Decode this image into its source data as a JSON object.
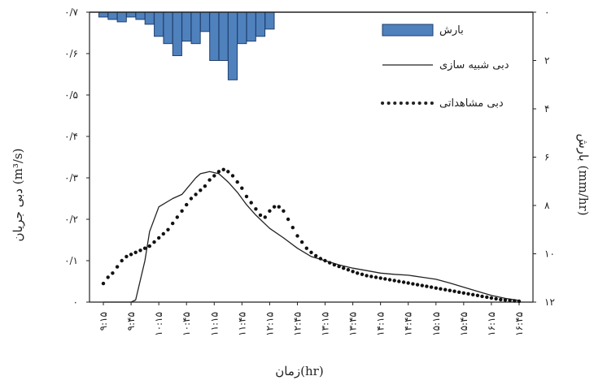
{
  "chart_data": {
    "type": "bar+line",
    "title": "",
    "x_labels": [
      "۹:۱۵",
      "۹:۴۵",
      "۱۰:۱۵",
      "۱۰:۴۵",
      "۱۱:۱۵",
      "۱۱:۴۵",
      "۱۲:۱۵",
      "۱۲:۴۵",
      "۱۳:۱۵",
      "۱۳:۴۵",
      "۱۴:۱۵",
      "۱۴:۴۵",
      "۱۵:۱۵",
      "۱۵:۴۵",
      "۱۶:۱۵",
      "۱۶:۴۵"
    ],
    "xlabel": "زمان(hr)",
    "ylabel_left": "دبی جریان (m³/s)",
    "ylabel_right": "بارش (mm/hr)",
    "y_left_ticks": [
      "۰",
      "۰/۱",
      "۰/۲",
      "۰/۳",
      "۰/۴",
      "۰/۵",
      "۰/۶",
      "۰/۷"
    ],
    "y_left_lim": [
      0,
      0.7
    ],
    "y_right_ticks": [
      "۰",
      "۲",
      "۴",
      "۶",
      "۸",
      "۱۰",
      "۱۲"
    ],
    "y_right_lim": [
      0,
      12
    ],
    "y_right_inverted": true,
    "legend": {
      "position": "top-right",
      "rain_label": "بارش",
      "sim_label": "دبی شبیه سازی",
      "obs_label": "دبی مشاهداتی"
    },
    "rainfall": {
      "name": "بارش",
      "color": "#4f81bd",
      "x": [
        9.25,
        9.417,
        9.583,
        9.75,
        9.917,
        10.083,
        10.25,
        10.417,
        10.583,
        10.75,
        10.917,
        11.083,
        11.25,
        11.417,
        11.583,
        11.75,
        11.917,
        12.083,
        12.25
      ],
      "values": [
        0.2,
        0.3,
        0.4,
        0.2,
        0.3,
        0.5,
        1.0,
        1.3,
        1.8,
        1.2,
        1.3,
        0.8,
        2.0,
        2.0,
        2.8,
        1.3,
        1.2,
        1.0,
        0.7
      ]
    },
    "simulated": {
      "name": "دبی شبیه سازی",
      "x": [
        9.25,
        9.5,
        9.75,
        9.833,
        10.0,
        10.083,
        10.25,
        10.5,
        10.667,
        10.917,
        11.0,
        11.167,
        11.333,
        11.417,
        11.5,
        11.667,
        11.833,
        12.0,
        12.25,
        12.5,
        12.75,
        13.0,
        13.25,
        13.5,
        13.75,
        14.0,
        14.25,
        14.5,
        14.75,
        15.0,
        15.25,
        15.5,
        15.75,
        16.0,
        16.25,
        16.5,
        16.75
      ],
      "values": [
        0,
        0,
        0,
        0.005,
        0.1,
        0.17,
        0.23,
        0.25,
        0.26,
        0.3,
        0.31,
        0.315,
        0.31,
        0.3,
        0.29,
        0.265,
        0.235,
        0.21,
        0.178,
        0.155,
        0.13,
        0.11,
        0.1,
        0.09,
        0.082,
        0.076,
        0.07,
        0.067,
        0.065,
        0.06,
        0.055,
        0.046,
        0.036,
        0.026,
        0.016,
        0.009,
        0.004
      ]
    },
    "observed": {
      "name": "دبی مشاهداتی",
      "x": [
        9.25,
        9.333,
        9.417,
        9.5,
        9.583,
        9.667,
        9.75,
        9.833,
        9.917,
        10.0,
        10.083,
        10.167,
        10.25,
        10.333,
        10.417,
        10.5,
        10.583,
        10.667,
        10.75,
        10.833,
        10.917,
        11.0,
        11.083,
        11.167,
        11.25,
        11.333,
        11.417,
        11.5,
        11.583,
        11.667,
        11.75,
        11.833,
        11.917,
        12.0,
        12.083,
        12.167,
        12.25,
        12.333,
        12.417,
        12.5,
        12.583,
        12.667,
        12.75,
        12.833,
        12.917,
        13.0,
        13.083,
        13.167,
        13.25,
        13.333,
        13.417,
        13.5,
        13.583,
        13.667,
        13.75,
        13.833,
        13.917,
        14.0,
        14.083,
        14.167,
        14.25,
        14.333,
        14.417,
        14.5,
        14.583,
        14.667,
        14.75,
        14.833,
        14.917,
        15.0,
        15.083,
        15.167,
        15.25,
        15.333,
        15.417,
        15.5,
        15.583,
        15.667,
        15.75,
        15.833,
        15.917,
        16.0,
        16.083,
        16.167,
        16.25,
        16.333,
        16.417,
        16.5,
        16.583,
        16.667,
        16.75
      ],
      "values": [
        0.045,
        0.06,
        0.07,
        0.085,
        0.1,
        0.11,
        0.115,
        0.12,
        0.125,
        0.13,
        0.135,
        0.145,
        0.155,
        0.165,
        0.175,
        0.19,
        0.205,
        0.22,
        0.235,
        0.25,
        0.26,
        0.27,
        0.28,
        0.295,
        0.305,
        0.315,
        0.32,
        0.315,
        0.305,
        0.29,
        0.275,
        0.255,
        0.24,
        0.225,
        0.21,
        0.205,
        0.22,
        0.23,
        0.23,
        0.22,
        0.2,
        0.18,
        0.16,
        0.145,
        0.13,
        0.12,
        0.112,
        0.105,
        0.1,
        0.095,
        0.09,
        0.086,
        0.082,
        0.078,
        0.074,
        0.07,
        0.067,
        0.064,
        0.062,
        0.06,
        0.058,
        0.056,
        0.054,
        0.052,
        0.05,
        0.048,
        0.046,
        0.044,
        0.042,
        0.04,
        0.038,
        0.036,
        0.034,
        0.032,
        0.03,
        0.028,
        0.026,
        0.024,
        0.022,
        0.02,
        0.018,
        0.016,
        0.014,
        0.012,
        0.01,
        0.008,
        0.006,
        0.005,
        0.004,
        0.003,
        0.002
      ]
    }
  }
}
